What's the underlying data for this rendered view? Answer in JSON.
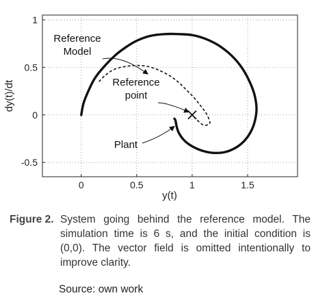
{
  "chart_data": {
    "type": "line",
    "xlabel": "y(t)",
    "ylabel": "dy(t)/dt",
    "xlim": [
      -0.35,
      1.95
    ],
    "ylim": [
      -0.65,
      1.05
    ],
    "x_ticks": [
      "0",
      "0.5",
      "1",
      "1.5"
    ],
    "x_tick_values": [
      0,
      0.5,
      1,
      1.5
    ],
    "y_ticks": [
      "1",
      "0.5",
      "0",
      "-0.5"
    ],
    "y_tick_values": [
      1,
      0.5,
      0,
      -0.5
    ],
    "grid": "dotted",
    "series": [
      {
        "style": "solid-thick",
        "x": [
          0.0,
          0.02,
          0.06,
          0.12,
          0.2,
          0.3,
          0.4,
          0.5,
          0.62,
          0.75,
          0.88,
          1.0,
          1.12,
          1.24,
          1.35,
          1.44,
          1.51,
          1.56,
          1.58,
          1.57,
          1.54,
          1.48,
          1.4,
          1.3,
          1.2,
          1.1,
          1.0,
          0.93,
          0.88,
          0.86,
          0.85,
          0.84
        ],
        "y": [
          0.0,
          0.12,
          0.24,
          0.38,
          0.5,
          0.62,
          0.71,
          0.78,
          0.83,
          0.85,
          0.85,
          0.84,
          0.8,
          0.73,
          0.63,
          0.51,
          0.37,
          0.22,
          0.08,
          -0.04,
          -0.15,
          -0.26,
          -0.34,
          -0.39,
          -0.4,
          -0.38,
          -0.33,
          -0.27,
          -0.19,
          -0.12,
          -0.06,
          -0.04
        ]
      },
      {
        "style": "dashed",
        "x": [
          0.16,
          0.22,
          0.3,
          0.4,
          0.5,
          0.6,
          0.7,
          0.8,
          0.88,
          0.95,
          1.01,
          1.06,
          1.1,
          1.13,
          1.15,
          1.16,
          1.15,
          1.12,
          1.09,
          1.06,
          1.03,
          1.01,
          1.0
        ],
        "y": [
          0.35,
          0.42,
          0.48,
          0.51,
          0.52,
          0.51,
          0.47,
          0.41,
          0.34,
          0.26,
          0.19,
          0.12,
          0.06,
          0.01,
          -0.04,
          -0.08,
          -0.1,
          -0.11,
          -0.1,
          -0.07,
          -0.04,
          -0.01,
          0.0
        ]
      }
    ],
    "reference_point": [
      1.0,
      0.0
    ],
    "annotations": [
      {
        "lines": [
          "Reference",
          "Model"
        ],
        "points_to": [
          0.6,
          0.43
        ]
      },
      {
        "lines": [
          "Reference",
          "point"
        ],
        "points_to": [
          0.97,
          0.03
        ]
      },
      {
        "lines": [
          "Plant"
        ],
        "points_to": [
          0.84,
          -0.12
        ]
      }
    ]
  },
  "caption": {
    "label": "Figure 2.",
    "text": "System going behind the reference model. The simulation time is 6 s, and the initial condition is (0,0). The vector field is omitted intentionally to improve clarity."
  },
  "source": "Source: own work"
}
